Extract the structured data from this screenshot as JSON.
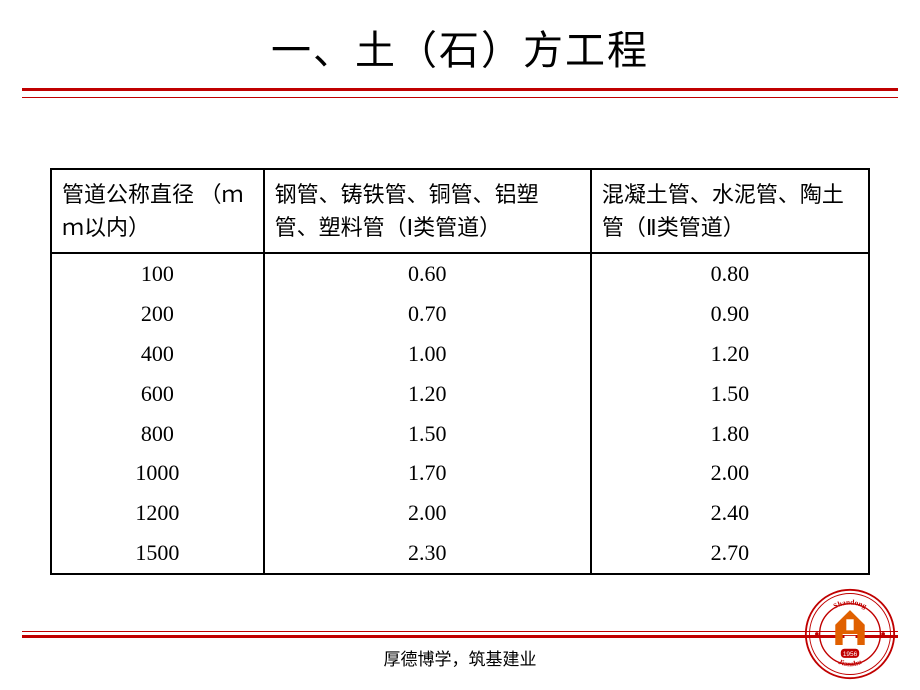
{
  "title": "一、土（石）方工程",
  "table": {
    "headers": [
      "管道公称直径\n（ｍｍ以内）",
      "钢管、铸铁管、铜管、铝塑管、塑料管（Ⅰ类管道）",
      "混凝土管、水泥管、陶土管（Ⅱ类管道）"
    ],
    "rows": [
      [
        "100",
        "0.60",
        "0.80"
      ],
      [
        "200",
        "0.70",
        "0.90"
      ],
      [
        "400",
        "1.00",
        "1.20"
      ],
      [
        "600",
        "1.20",
        "1.50"
      ],
      [
        "800",
        "1.50",
        "1.80"
      ],
      [
        "1000",
        "1.70",
        "2.00"
      ],
      [
        "1200",
        "2.00",
        "2.40"
      ],
      [
        "1500",
        "2.30",
        "2.70"
      ]
    ],
    "column_widths": [
      "26%",
      "40%",
      "34%"
    ],
    "border_color": "#000000",
    "font_size": 22
  },
  "motto": "厚德博学，筑基建业",
  "colors": {
    "rule": "#c00000",
    "text": "#000000",
    "background": "#ffffff",
    "logo_outer": "#c00000",
    "logo_inner": "#e06000",
    "logo_year_bg": "#c00000"
  },
  "logo": {
    "top_text": "Shandong",
    "bottom_text": "Jianzhu",
    "year": "1956"
  }
}
